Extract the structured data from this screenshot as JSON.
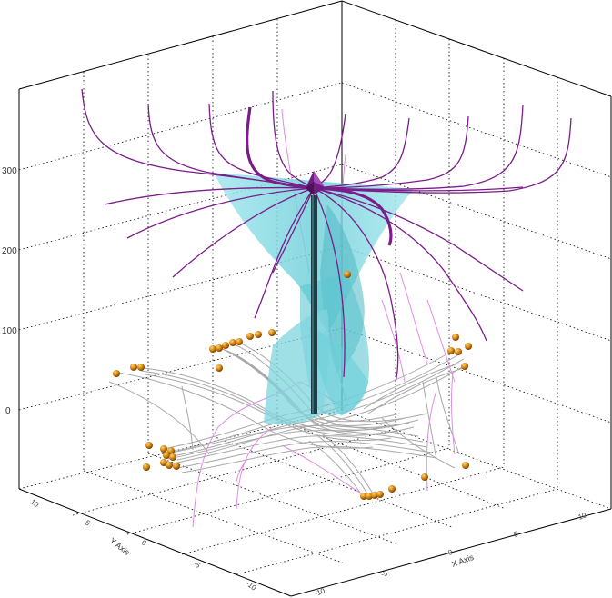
{
  "scene": {
    "colors": {
      "frame": "#000000",
      "grid": "#000000",
      "surface": "#7fd6df",
      "surface_dark": "#2f8e98",
      "streamline_purple": "#7a1d8a",
      "streamline_gray": "#a8a8a8",
      "streamline_pink": "#e28be6",
      "sphere": "#cc7a10",
      "column": "#1d3f46"
    },
    "z_axis": {
      "ticks": [
        "0",
        "100",
        "200",
        "300"
      ]
    },
    "y_axis": {
      "title": "Y Axis",
      "ticks": [
        "10",
        "5",
        "0",
        "-5",
        "-10"
      ]
    },
    "x_axis": {
      "title": "X Axis",
      "ticks": [
        "-10",
        "-5",
        "0",
        "5",
        "10"
      ]
    }
  }
}
